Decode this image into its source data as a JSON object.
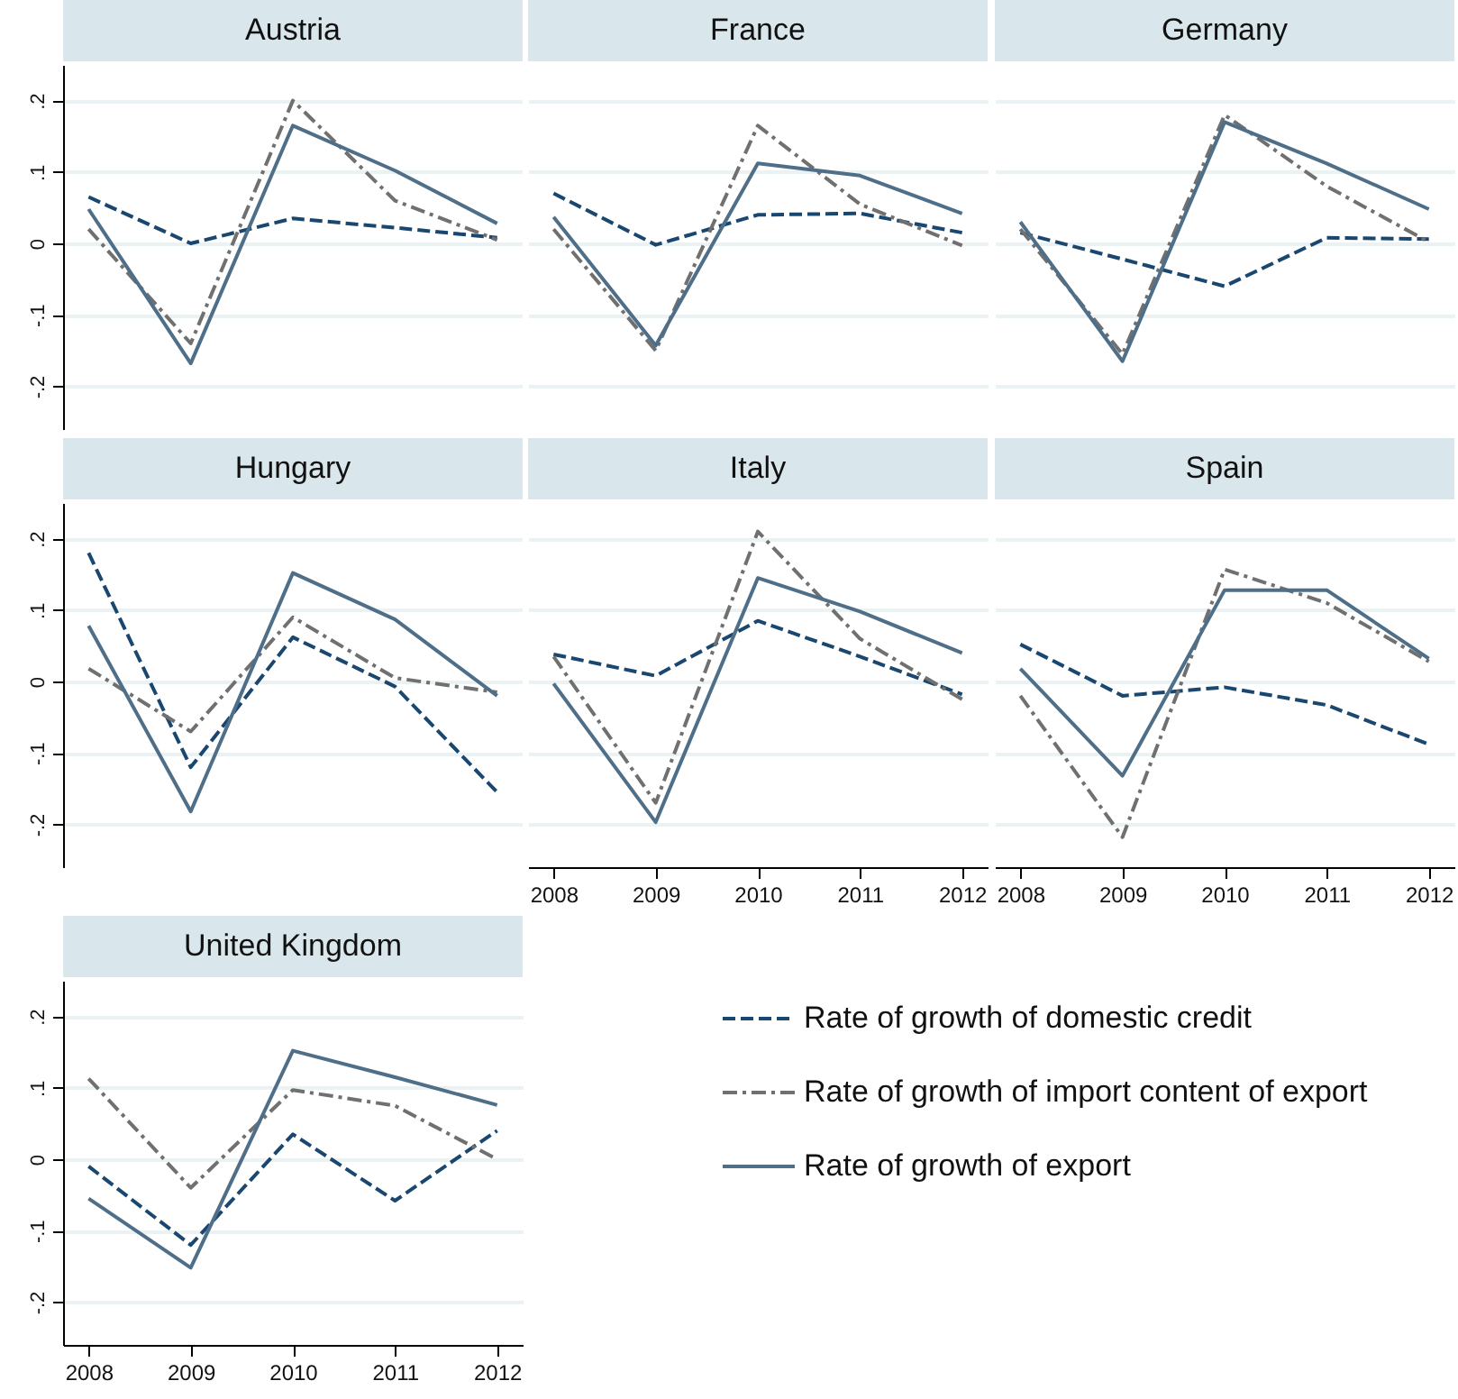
{
  "chart_data": [
    {
      "type": "line",
      "title": "Austria",
      "x": [
        2008,
        2009,
        2010,
        2011,
        2012
      ],
      "xlim": [
        2007.75,
        2012.25
      ],
      "ylim": [
        -0.26,
        0.25
      ],
      "yticks": [
        {
          "value": -0.2,
          "label": "-.2"
        },
        {
          "value": -0.1,
          "label": "-.1"
        },
        {
          "value": 0,
          "label": "0"
        },
        {
          "value": 0.1,
          "label": ".1"
        },
        {
          "value": 0.2,
          "label": ".2"
        }
      ],
      "grid": "y",
      "tick_labels": "y",
      "legend": false,
      "series": [
        {
          "color": "#1a476f",
          "line_style": "dashed",
          "values": [
            0.065,
            0.0,
            0.035,
            0.022,
            0.008
          ]
        },
        {
          "color": "#707070",
          "line_style": "dotted",
          "values": [
            0.02,
            -0.14,
            0.2,
            0.06,
            0.005
          ]
        },
        {
          "color": "#4f6f89",
          "line_style": "solid",
          "values": [
            0.048,
            -0.168,
            0.165,
            0.102,
            0.028
          ]
        }
      ]
    },
    {
      "type": "line",
      "title": "France",
      "x": [
        2008,
        2009,
        2010,
        2011,
        2012
      ],
      "xlim": [
        2007.75,
        2012.25
      ],
      "ylim": [
        -0.26,
        0.25
      ],
      "yticks": [
        {
          "value": -0.2,
          "label": null
        },
        {
          "value": -0.1,
          "label": null
        },
        {
          "value": 0,
          "label": null
        },
        {
          "value": 0.1,
          "label": null
        },
        {
          "value": 0.2,
          "label": null
        }
      ],
      "grid": "y",
      "tick_labels": false,
      "legend": false,
      "series": [
        {
          "color": "#1a476f",
          "line_style": "dashed",
          "values": [
            0.07,
            -0.002,
            0.04,
            0.042,
            0.015
          ]
        },
        {
          "color": "#707070",
          "line_style": "dotted",
          "values": [
            0.02,
            -0.15,
            0.165,
            0.055,
            -0.003
          ]
        },
        {
          "color": "#4f6f89",
          "line_style": "solid",
          "values": [
            0.037,
            -0.143,
            0.112,
            0.095,
            0.042
          ]
        }
      ]
    },
    {
      "type": "line",
      "title": "Germany",
      "x": [
        2008,
        2009,
        2010,
        2011,
        2012
      ],
      "xlim": [
        2007.75,
        2012.25
      ],
      "ylim": [
        -0.26,
        0.25
      ],
      "yticks": [
        {
          "value": -0.2,
          "label": null
        },
        {
          "value": -0.1,
          "label": null
        },
        {
          "value": 0,
          "label": null
        },
        {
          "value": 0.1,
          "label": null
        },
        {
          "value": 0.2,
          "label": null
        }
      ],
      "grid": "y",
      "tick_labels": false,
      "legend": false,
      "series": [
        {
          "color": "#1a476f",
          "line_style": "dashed",
          "values": [
            0.015,
            -0.022,
            -0.06,
            0.008,
            0.006
          ]
        },
        {
          "color": "#707070",
          "line_style": "dotted",
          "values": [
            0.02,
            -0.155,
            0.18,
            0.08,
            0.002
          ]
        },
        {
          "color": "#4f6f89",
          "line_style": "solid",
          "values": [
            0.03,
            -0.165,
            0.17,
            0.112,
            0.048
          ]
        }
      ]
    },
    {
      "type": "line",
      "title": "Hungary",
      "x": [
        2008,
        2009,
        2010,
        2011,
        2012
      ],
      "xlim": [
        2007.75,
        2012.25
      ],
      "ylim": [
        -0.26,
        0.25
      ],
      "yticks": [
        {
          "value": -0.2,
          "label": "-.2"
        },
        {
          "value": -0.1,
          "label": "-.1"
        },
        {
          "value": 0,
          "label": "0"
        },
        {
          "value": 0.1,
          "label": ".1"
        },
        {
          "value": 0.2,
          "label": ".2"
        }
      ],
      "grid": "y",
      "tick_labels": "y",
      "legend": false,
      "series": [
        {
          "color": "#1a476f",
          "line_style": "dashed",
          "values": [
            0.18,
            -0.12,
            0.062,
            -0.007,
            -0.155
          ]
        },
        {
          "color": "#707070",
          "line_style": "dotted",
          "values": [
            0.018,
            -0.07,
            0.09,
            0.005,
            -0.015
          ]
        },
        {
          "color": "#4f6f89",
          "line_style": "solid",
          "values": [
            0.078,
            -0.182,
            0.152,
            0.087,
            -0.02
          ]
        }
      ]
    },
    {
      "type": "line",
      "title": "Italy",
      "x": [
        2008,
        2009,
        2010,
        2011,
        2012
      ],
      "xlim": [
        2007.75,
        2012.25
      ],
      "xticks": [
        2008,
        2009,
        2010,
        2011,
        2012
      ],
      "ylim": [
        -0.26,
        0.25
      ],
      "yticks": [
        {
          "value": -0.2,
          "label": null
        },
        {
          "value": -0.1,
          "label": null
        },
        {
          "value": 0,
          "label": null
        },
        {
          "value": 0.1,
          "label": null
        },
        {
          "value": 0.2,
          "label": null
        }
      ],
      "grid": "y",
      "tick_labels": "x",
      "legend": false,
      "series": [
        {
          "color": "#1a476f",
          "line_style": "dashed",
          "values": [
            0.038,
            0.008,
            0.085,
            0.035,
            -0.018
          ]
        },
        {
          "color": "#707070",
          "line_style": "dotted",
          "values": [
            0.035,
            -0.17,
            0.21,
            0.06,
            -0.025
          ]
        },
        {
          "color": "#4f6f89",
          "line_style": "solid",
          "values": [
            -0.003,
            -0.197,
            0.145,
            0.098,
            0.04
          ]
        }
      ]
    },
    {
      "type": "line",
      "title": "Spain",
      "x": [
        2008,
        2009,
        2010,
        2011,
        2012
      ],
      "xlim": [
        2007.75,
        2012.25
      ],
      "xticks": [
        2008,
        2009,
        2010,
        2011,
        2012
      ],
      "ylim": [
        -0.26,
        0.25
      ],
      "yticks": [
        {
          "value": -0.2,
          "label": null
        },
        {
          "value": -0.1,
          "label": null
        },
        {
          "value": 0,
          "label": null
        },
        {
          "value": 0.1,
          "label": null
        },
        {
          "value": 0.2,
          "label": null
        }
      ],
      "grid": "y",
      "tick_labels": "x",
      "legend": false,
      "series": [
        {
          "color": "#1a476f",
          "line_style": "dashed",
          "values": [
            0.052,
            -0.02,
            -0.008,
            -0.033,
            -0.088
          ]
        },
        {
          "color": "#707070",
          "line_style": "dotted",
          "values": [
            -0.02,
            -0.218,
            0.157,
            0.11,
            0.028
          ]
        },
        {
          "color": "#4f6f89",
          "line_style": "solid",
          "values": [
            0.018,
            -0.132,
            0.128,
            0.128,
            0.032
          ]
        }
      ]
    },
    {
      "type": "line",
      "title": "United Kingdom",
      "x": [
        2008,
        2009,
        2010,
        2011,
        2012
      ],
      "xlim": [
        2007.75,
        2012.25
      ],
      "xticks": [
        2008,
        2009,
        2010,
        2011,
        2012
      ],
      "ylim": [
        -0.26,
        0.25
      ],
      "yticks": [
        {
          "value": -0.2,
          "label": "-.2"
        },
        {
          "value": -0.1,
          "label": "-.1"
        },
        {
          "value": 0,
          "label": "0"
        },
        {
          "value": 0.1,
          "label": ".1"
        },
        {
          "value": 0.2,
          "label": ".2"
        }
      ],
      "grid": "y",
      "legend": "right",
      "series": [
        {
          "name": "Rate of growth of domestic credit",
          "color": "#1a476f",
          "line_style": "dashed",
          "values": [
            -0.01,
            -0.12,
            0.035,
            -0.058,
            0.04
          ]
        },
        {
          "name": "Rate of growth of import content of export",
          "color": "#707070",
          "line_style": "dotted",
          "values": [
            0.113,
            -0.04,
            0.097,
            0.075,
            0.0
          ]
        },
        {
          "name": "Rate of growth of export",
          "color": "#4f6f89",
          "line_style": "solid",
          "values": [
            -0.055,
            -0.152,
            0.152,
            0.115,
            0.076
          ]
        }
      ]
    }
  ]
}
